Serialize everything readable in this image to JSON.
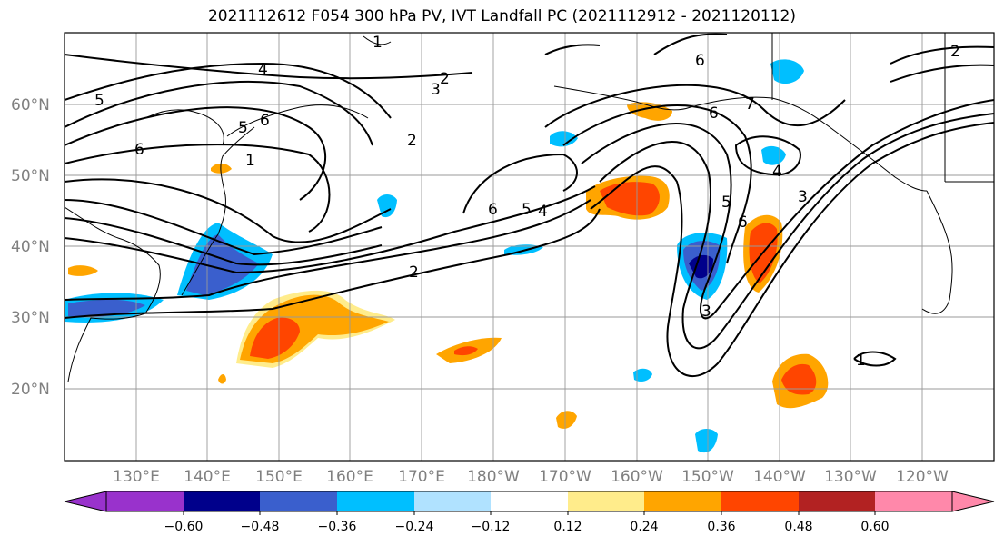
{
  "title": "2021112612 F054 300 hPa PV, IVT Landfall PC (2021112912 - 2021120112)",
  "map": {
    "lat_labels": [
      "60°N",
      "50°N",
      "40°N",
      "30°N",
      "20°N"
    ],
    "lon_labels": [
      "130°E",
      "140°E",
      "150°E",
      "160°E",
      "170°E",
      "180°W",
      "170°W",
      "160°W",
      "150°W",
      "140°W",
      "130°W",
      "120°W"
    ],
    "contour_labels": [
      "5",
      "4",
      "3",
      "2",
      "1",
      "6",
      "5",
      "6",
      "1",
      "2",
      "6",
      "5",
      "4",
      "2",
      "6",
      "7",
      "4",
      "3",
      "6",
      "5",
      "3",
      "1",
      "2",
      "6"
    ]
  },
  "colorbar": {
    "ticks": [
      "−0.60",
      "−0.48",
      "−0.36",
      "−0.24",
      "−0.12",
      "0.12",
      "0.24",
      "0.36",
      "0.48",
      "0.60"
    ],
    "colors": [
      "#9932cc",
      "#00008b",
      "#3a5fcd",
      "#00bfff",
      "#b0e2ff",
      "#ffffff",
      "#ffec8b",
      "#ffa500",
      "#ff4500",
      "#b22222",
      "#ff88aa"
    ]
  }
}
